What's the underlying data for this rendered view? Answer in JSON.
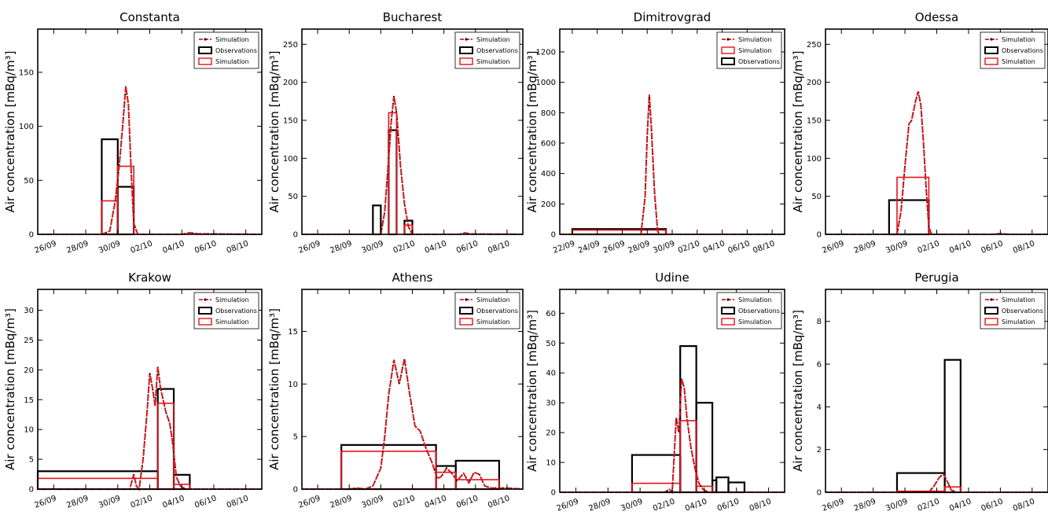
{
  "chart_data": [
    {
      "type": "line",
      "title": "Constanta",
      "ylabel": "Air concentration [mBq/m³]",
      "xlabel": "",
      "x_ticks": [
        "26/09",
        "28/09",
        "30/09",
        "02/10",
        "04/10",
        "06/10",
        "08/10"
      ],
      "xlim": [
        "2018-09-25",
        "2018-10-09"
      ],
      "y_ticks": [
        0,
        50,
        100,
        150
      ],
      "ylim": [
        0,
        190
      ],
      "legend": [
        "Simulation",
        "Observations",
        "Simulation"
      ],
      "legend_position": "top-right",
      "observations": [
        {
          "start": "2018-09-29",
          "end": "2018-09-30",
          "value": 88
        },
        {
          "start": "2018-09-30",
          "end": "2018-10-01",
          "value": 44
        }
      ],
      "simulation_bars": [
        {
          "start": "2018-09-29",
          "end": "2018-09-30",
          "value": 31
        },
        {
          "start": "2018-09-30",
          "end": "2018-10-01",
          "value": 63
        }
      ],
      "simulation_line": [
        {
          "x": "2018-09-25",
          "y": 0
        },
        {
          "x": "2018-09-29",
          "y": 0
        },
        {
          "x": "2018-09-29 12:00",
          "y": 3
        },
        {
          "x": "2018-09-29 20:00",
          "y": 30
        },
        {
          "x": "2018-09-30 02:00",
          "y": 62
        },
        {
          "x": "2018-09-30 08:00",
          "y": 105
        },
        {
          "x": "2018-09-30 12:00",
          "y": 137
        },
        {
          "x": "2018-09-30 16:00",
          "y": 120
        },
        {
          "x": "2018-09-30 20:00",
          "y": 60
        },
        {
          "x": "2018-10-01 00:00",
          "y": 10
        },
        {
          "x": "2018-10-01 06:00",
          "y": 0
        },
        {
          "x": "2018-10-04",
          "y": 0
        },
        {
          "x": "2018-10-04 12:00",
          "y": 1.5
        },
        {
          "x": "2018-10-05",
          "y": 0.5
        },
        {
          "x": "2018-10-09",
          "y": 0
        }
      ]
    },
    {
      "type": "line",
      "title": "Bucharest",
      "ylabel": "Air concentration [mBq/m³]",
      "xlabel": "",
      "x_ticks": [
        "26/09",
        "28/09",
        "30/09",
        "02/10",
        "04/10",
        "06/10",
        "08/10"
      ],
      "xlim": [
        "2018-09-25",
        "2018-10-09"
      ],
      "y_ticks": [
        0,
        50,
        100,
        150,
        200,
        250
      ],
      "ylim": [
        0,
        270
      ],
      "legend": [
        "Simulation",
        "Observations",
        "Simulation"
      ],
      "legend_position": "top-right",
      "observations": [
        {
          "start": "2018-09-29 12:00",
          "end": "2018-09-30",
          "value": 38
        },
        {
          "start": "2018-09-30 12:00",
          "end": "2018-10-01",
          "value": 137
        },
        {
          "start": "2018-10-01 12:00",
          "end": "2018-10-02",
          "value": 18
        }
      ],
      "simulation_bars": [
        {
          "start": "2018-09-30 12:00",
          "end": "2018-10-01",
          "value": 160
        },
        {
          "start": "2018-10-01 12:00",
          "end": "2018-10-02",
          "value": 12
        }
      ],
      "simulation_line": [
        {
          "x": "2018-09-25",
          "y": 0
        },
        {
          "x": "2018-09-30",
          "y": 0
        },
        {
          "x": "2018-09-30 06:00",
          "y": 30
        },
        {
          "x": "2018-09-30 12:00",
          "y": 100
        },
        {
          "x": "2018-09-30 16:00",
          "y": 150
        },
        {
          "x": "2018-09-30 20:00",
          "y": 182
        },
        {
          "x": "2018-10-01 00:00",
          "y": 160
        },
        {
          "x": "2018-10-01 06:00",
          "y": 90
        },
        {
          "x": "2018-10-01 12:00",
          "y": 40
        },
        {
          "x": "2018-10-01 18:00",
          "y": 10
        },
        {
          "x": "2018-10-02",
          "y": 0
        },
        {
          "x": "2018-10-05",
          "y": 0
        },
        {
          "x": "2018-10-05 08:00",
          "y": 2
        },
        {
          "x": "2018-10-05 16:00",
          "y": 0.5
        },
        {
          "x": "2018-10-09",
          "y": 0
        }
      ]
    },
    {
      "type": "line",
      "title": "Dimitrovgrad",
      "ylabel": "Air concentration [mBq/m³]",
      "xlabel": "",
      "x_ticks": [
        "22/09",
        "24/09",
        "26/09",
        "28/09",
        "30/09",
        "02/10",
        "04/10",
        "06/10",
        "08/10"
      ],
      "xlim": [
        "2018-09-21",
        "2018-10-09"
      ],
      "y_ticks": [
        0,
        200,
        400,
        600,
        800,
        1000,
        1200
      ],
      "ylim": [
        0,
        1350
      ],
      "legend": [
        "Simulation",
        "Simulation",
        "Observations"
      ],
      "legend_position": "top-right",
      "observations": [
        {
          "start": "2018-09-22",
          "end": "2018-09-29 12:00",
          "value": 35
        }
      ],
      "simulation_bars": [
        {
          "start": "2018-09-22",
          "end": "2018-09-29 12:00",
          "value": 28
        }
      ],
      "simulation_line": [
        {
          "x": "2018-09-21",
          "y": 0
        },
        {
          "x": "2018-09-27 12:00",
          "y": 0
        },
        {
          "x": "2018-09-27 20:00",
          "y": 250
        },
        {
          "x": "2018-09-28 00:00",
          "y": 650
        },
        {
          "x": "2018-09-28 04:00",
          "y": 920
        },
        {
          "x": "2018-09-28 08:00",
          "y": 700
        },
        {
          "x": "2018-09-28 14:00",
          "y": 280
        },
        {
          "x": "2018-09-28 20:00",
          "y": 20
        },
        {
          "x": "2018-09-29",
          "y": 0
        },
        {
          "x": "2018-10-09",
          "y": 0
        }
      ]
    },
    {
      "type": "line",
      "title": "Odessa",
      "ylabel": "Air concentration [mBq/m³]",
      "xlabel": "",
      "x_ticks": [
        "26/09",
        "28/09",
        "30/09",
        "02/10",
        "04/10",
        "06/10",
        "08/10"
      ],
      "xlim": [
        "2018-09-25",
        "2018-10-09"
      ],
      "y_ticks": [
        0,
        50,
        100,
        150,
        200,
        250
      ],
      "ylim": [
        0,
        270
      ],
      "legend": [
        "Simulation",
        "Observations",
        "Simulation"
      ],
      "legend_position": "top-right",
      "observations": [
        {
          "start": "2018-09-29",
          "end": "2018-10-01 12:00",
          "value": 45
        }
      ],
      "simulation_bars": [
        {
          "start": "2018-09-29 12:00",
          "end": "2018-10-01 12:00",
          "value": 75
        }
      ],
      "simulation_line": [
        {
          "x": "2018-09-25",
          "y": 0
        },
        {
          "x": "2018-09-29 12:00",
          "y": 0
        },
        {
          "x": "2018-09-29 18:00",
          "y": 30
        },
        {
          "x": "2018-09-30 00:00",
          "y": 90
        },
        {
          "x": "2018-09-30 06:00",
          "y": 145
        },
        {
          "x": "2018-09-30 10:00",
          "y": 150
        },
        {
          "x": "2018-09-30 16:00",
          "y": 175
        },
        {
          "x": "2018-09-30 20:00",
          "y": 188
        },
        {
          "x": "2018-10-01 00:00",
          "y": 170
        },
        {
          "x": "2018-10-01 04:00",
          "y": 120
        },
        {
          "x": "2018-10-01 08:00",
          "y": 60
        },
        {
          "x": "2018-10-01 12:00",
          "y": 10
        },
        {
          "x": "2018-10-01 16:00",
          "y": 0
        },
        {
          "x": "2018-10-05 12:00",
          "y": 0
        },
        {
          "x": "2018-10-06",
          "y": 1
        },
        {
          "x": "2018-10-06 12:00",
          "y": 0
        },
        {
          "x": "2018-10-09",
          "y": 0
        }
      ]
    },
    {
      "type": "line",
      "title": "Krakow",
      "ylabel": "Air concentration [mBq/m³]",
      "xlabel": "",
      "x_ticks": [
        "26/09",
        "28/09",
        "30/09",
        "02/10",
        "04/10",
        "06/10",
        "08/10"
      ],
      "xlim": [
        "2018-09-25",
        "2018-10-09"
      ],
      "y_ticks": [
        0,
        5,
        10,
        15,
        20,
        25,
        30
      ],
      "ylim": [
        0,
        33.5
      ],
      "legend": [
        "Simulation",
        "Observations",
        "Simulation"
      ],
      "legend_position": "top-right",
      "observations": [
        {
          "start": "2018-09-25",
          "end": "2018-10-02 12:00",
          "value": 3
        },
        {
          "start": "2018-10-02 12:00",
          "end": "2018-10-03 12:00",
          "value": 16.8
        },
        {
          "start": "2018-10-03 12:00",
          "end": "2018-10-04 12:00",
          "value": 2.4
        }
      ],
      "simulation_bars": [
        {
          "start": "2018-09-25",
          "end": "2018-10-02 12:00",
          "value": 1.8
        },
        {
          "start": "2018-10-02 12:00",
          "end": "2018-10-03 12:00",
          "value": 14.4
        },
        {
          "start": "2018-10-03 12:00",
          "end": "2018-10-04 12:00",
          "value": 0.8
        }
      ],
      "simulation_line": [
        {
          "x": "2018-09-25",
          "y": 0
        },
        {
          "x": "2018-09-30 18:00",
          "y": 0
        },
        {
          "x": "2018-10-01 00:00",
          "y": 2.5
        },
        {
          "x": "2018-10-01 04:00",
          "y": 0.5
        },
        {
          "x": "2018-10-01 08:00",
          "y": 0
        },
        {
          "x": "2018-10-01 14:00",
          "y": 5
        },
        {
          "x": "2018-10-01 20:00",
          "y": 13
        },
        {
          "x": "2018-10-02 00:00",
          "y": 19.5
        },
        {
          "x": "2018-10-02 04:00",
          "y": 17
        },
        {
          "x": "2018-10-02 08:00",
          "y": 14
        },
        {
          "x": "2018-10-02 12:00",
          "y": 20.5
        },
        {
          "x": "2018-10-02 16:00",
          "y": 17
        },
        {
          "x": "2018-10-02 20:00",
          "y": 15
        },
        {
          "x": "2018-10-03 00:00",
          "y": 13
        },
        {
          "x": "2018-10-03 06:00",
          "y": 11
        },
        {
          "x": "2018-10-03 10:00",
          "y": 8
        },
        {
          "x": "2018-10-03 16:00",
          "y": 2
        },
        {
          "x": "2018-10-03 22:00",
          "y": 0.5
        },
        {
          "x": "2018-10-04 06:00",
          "y": 0
        },
        {
          "x": "2018-10-09",
          "y": 0
        }
      ]
    },
    {
      "type": "line",
      "title": "Athens",
      "ylabel": "Air concentration [mBq/m³]",
      "xlabel": "",
      "x_ticks": [
        "26/09",
        "28/09",
        "30/09",
        "02/10",
        "04/10",
        "06/10",
        "08/10"
      ],
      "xlim": [
        "2018-09-25",
        "2018-10-09"
      ],
      "y_ticks": [
        0,
        5,
        10,
        15
      ],
      "ylim": [
        0,
        19
      ],
      "legend": [
        "Simulation",
        "Observations",
        "Simulation"
      ],
      "legend_position": "top-right",
      "observations": [
        {
          "start": "2018-09-27 12:00",
          "end": "2018-10-03 12:00",
          "value": 4.2
        },
        {
          "start": "2018-10-03 12:00",
          "end": "2018-10-04 18:00",
          "value": 2.2
        },
        {
          "start": "2018-10-04 18:00",
          "end": "2018-10-07 12:00",
          "value": 2.7
        }
      ],
      "simulation_bars": [
        {
          "start": "2018-09-27 12:00",
          "end": "2018-10-03 12:00",
          "value": 3.6
        },
        {
          "start": "2018-10-03 12:00",
          "end": "2018-10-04 18:00",
          "value": 1.6
        },
        {
          "start": "2018-10-04 18:00",
          "end": "2018-10-07 12:00",
          "value": 0.9
        }
      ],
      "simulation_line": [
        {
          "x": "2018-09-25",
          "y": 0
        },
        {
          "x": "2018-09-28",
          "y": 0
        },
        {
          "x": "2018-09-28 12:00",
          "y": 0.1
        },
        {
          "x": "2018-09-29 00:00",
          "y": 0
        },
        {
          "x": "2018-09-29 12:00",
          "y": 0.3
        },
        {
          "x": "2018-09-30 00:00",
          "y": 2
        },
        {
          "x": "2018-09-30 06:00",
          "y": 5
        },
        {
          "x": "2018-09-30 12:00",
          "y": 9
        },
        {
          "x": "2018-09-30 20:00",
          "y": 12.3
        },
        {
          "x": "2018-10-01 04:00",
          "y": 10
        },
        {
          "x": "2018-10-01 12:00",
          "y": 12.4
        },
        {
          "x": "2018-10-01 20:00",
          "y": 9
        },
        {
          "x": "2018-10-02 04:00",
          "y": 6
        },
        {
          "x": "2018-10-02 12:00",
          "y": 5.5
        },
        {
          "x": "2018-10-02 20:00",
          "y": 4
        },
        {
          "x": "2018-10-03 06:00",
          "y": 2.5
        },
        {
          "x": "2018-10-03 14:00",
          "y": 1
        },
        {
          "x": "2018-10-03 20:00",
          "y": 1.2
        },
        {
          "x": "2018-10-04 04:00",
          "y": 2
        },
        {
          "x": "2018-10-04 12:00",
          "y": 1.5
        },
        {
          "x": "2018-10-04 20:00",
          "y": 0.8
        },
        {
          "x": "2018-10-05 06:00",
          "y": 1.5
        },
        {
          "x": "2018-10-05 14:00",
          "y": 0.6
        },
        {
          "x": "2018-10-05 22:00",
          "y": 1.6
        },
        {
          "x": "2018-10-06 06:00",
          "y": 1.4
        },
        {
          "x": "2018-10-06 14:00",
          "y": 0.3
        },
        {
          "x": "2018-10-07",
          "y": 0.1
        },
        {
          "x": "2018-10-08",
          "y": 0.1
        },
        {
          "x": "2018-10-09",
          "y": 0
        }
      ]
    },
    {
      "type": "line",
      "title": "Udine",
      "ylabel": "Air concentration [mBq/m³]",
      "xlabel": "",
      "x_ticks": [
        "26/09",
        "28/09",
        "30/09",
        "02/10",
        "04/10",
        "06/10",
        "08/10"
      ],
      "xlim": [
        "2018-09-25",
        "2018-10-09"
      ],
      "y_ticks": [
        0,
        10,
        20,
        30,
        40,
        50,
        60
      ],
      "ylim": [
        0,
        68
      ],
      "legend": [
        "Simulation",
        "Observations",
        "Simulation"
      ],
      "legend_position": "top-right",
      "observations": [
        {
          "start": "2018-09-29 12:00",
          "end": "2018-10-02 12:00",
          "value": 12.5
        },
        {
          "start": "2018-10-02 12:00",
          "end": "2018-10-03 12:00",
          "value": 49
        },
        {
          "start": "2018-10-03 12:00",
          "end": "2018-10-04 12:00",
          "value": 30
        },
        {
          "start": "2018-10-04 12:00",
          "end": "2018-10-04 18:00",
          "value": 4
        },
        {
          "start": "2018-10-04 18:00",
          "end": "2018-10-05 12:00",
          "value": 5
        },
        {
          "start": "2018-10-05 12:00",
          "end": "2018-10-06 12:00",
          "value": 3.3
        }
      ],
      "simulation_bars": [
        {
          "start": "2018-09-29 12:00",
          "end": "2018-10-02 12:00",
          "value": 3
        },
        {
          "start": "2018-10-02 12:00",
          "end": "2018-10-03 12:00",
          "value": 24
        },
        {
          "start": "2018-10-03 12:00",
          "end": "2018-10-04 12:00",
          "value": 2
        }
      ],
      "simulation_line": [
        {
          "x": "2018-09-25",
          "y": 0
        },
        {
          "x": "2018-10-01 12:00",
          "y": 0
        },
        {
          "x": "2018-10-01 20:00",
          "y": 1
        },
        {
          "x": "2018-10-02 00:00",
          "y": 0
        },
        {
          "x": "2018-10-02 06:00",
          "y": 25
        },
        {
          "x": "2018-10-02 10:00",
          "y": 20
        },
        {
          "x": "2018-10-02 14:00",
          "y": 38
        },
        {
          "x": "2018-10-02 18:00",
          "y": 35
        },
        {
          "x": "2018-10-02 22:00",
          "y": 25
        },
        {
          "x": "2018-10-03 04:00",
          "y": 15
        },
        {
          "x": "2018-10-03 10:00",
          "y": 8
        },
        {
          "x": "2018-10-03 16:00",
          "y": 3
        },
        {
          "x": "2018-10-03 22:00",
          "y": 1
        },
        {
          "x": "2018-10-04 06:00",
          "y": 0
        },
        {
          "x": "2018-10-09",
          "y": 0
        }
      ]
    },
    {
      "type": "line",
      "title": "Perugia",
      "ylabel": "Air concentration [mBq/m³]",
      "xlabel": "",
      "x_ticks": [
        "26/09",
        "28/09",
        "30/09",
        "02/10",
        "04/10",
        "06/10",
        "08/10"
      ],
      "xlim": [
        "2018-09-25",
        "2018-10-09"
      ],
      "y_ticks": [
        0,
        2,
        4,
        6,
        8
      ],
      "ylim": [
        0,
        9.5
      ],
      "legend": [
        "Simulation",
        "Observations",
        "Simulation"
      ],
      "legend_position": "top-right",
      "observations": [
        {
          "start": "2018-09-29 12:00",
          "end": "2018-10-02 12:00",
          "value": 0.9
        },
        {
          "start": "2018-10-02 12:00",
          "end": "2018-10-03 12:00",
          "value": 6.2
        }
      ],
      "simulation_bars": [
        {
          "start": "2018-09-29 12:00",
          "end": "2018-10-02 12:00",
          "value": 0.05
        },
        {
          "start": "2018-10-02 12:00",
          "end": "2018-10-03 12:00",
          "value": 0.25
        }
      ],
      "simulation_line": [
        {
          "x": "2018-09-25",
          "y": 0
        },
        {
          "x": "2018-10-01 12:00",
          "y": 0
        },
        {
          "x": "2018-10-01 20:00",
          "y": 0.3
        },
        {
          "x": "2018-10-02 04:00",
          "y": 0.7
        },
        {
          "x": "2018-10-02 10:00",
          "y": 0.85
        },
        {
          "x": "2018-10-02 16:00",
          "y": 0.5
        },
        {
          "x": "2018-10-02 22:00",
          "y": 0.1
        },
        {
          "x": "2018-10-03 06:00",
          "y": 0
        },
        {
          "x": "2018-10-09",
          "y": 0
        }
      ]
    }
  ],
  "colors": {
    "simulation": "#e8111a",
    "observations": "#000000",
    "simulation_line_dots": "#111111"
  }
}
